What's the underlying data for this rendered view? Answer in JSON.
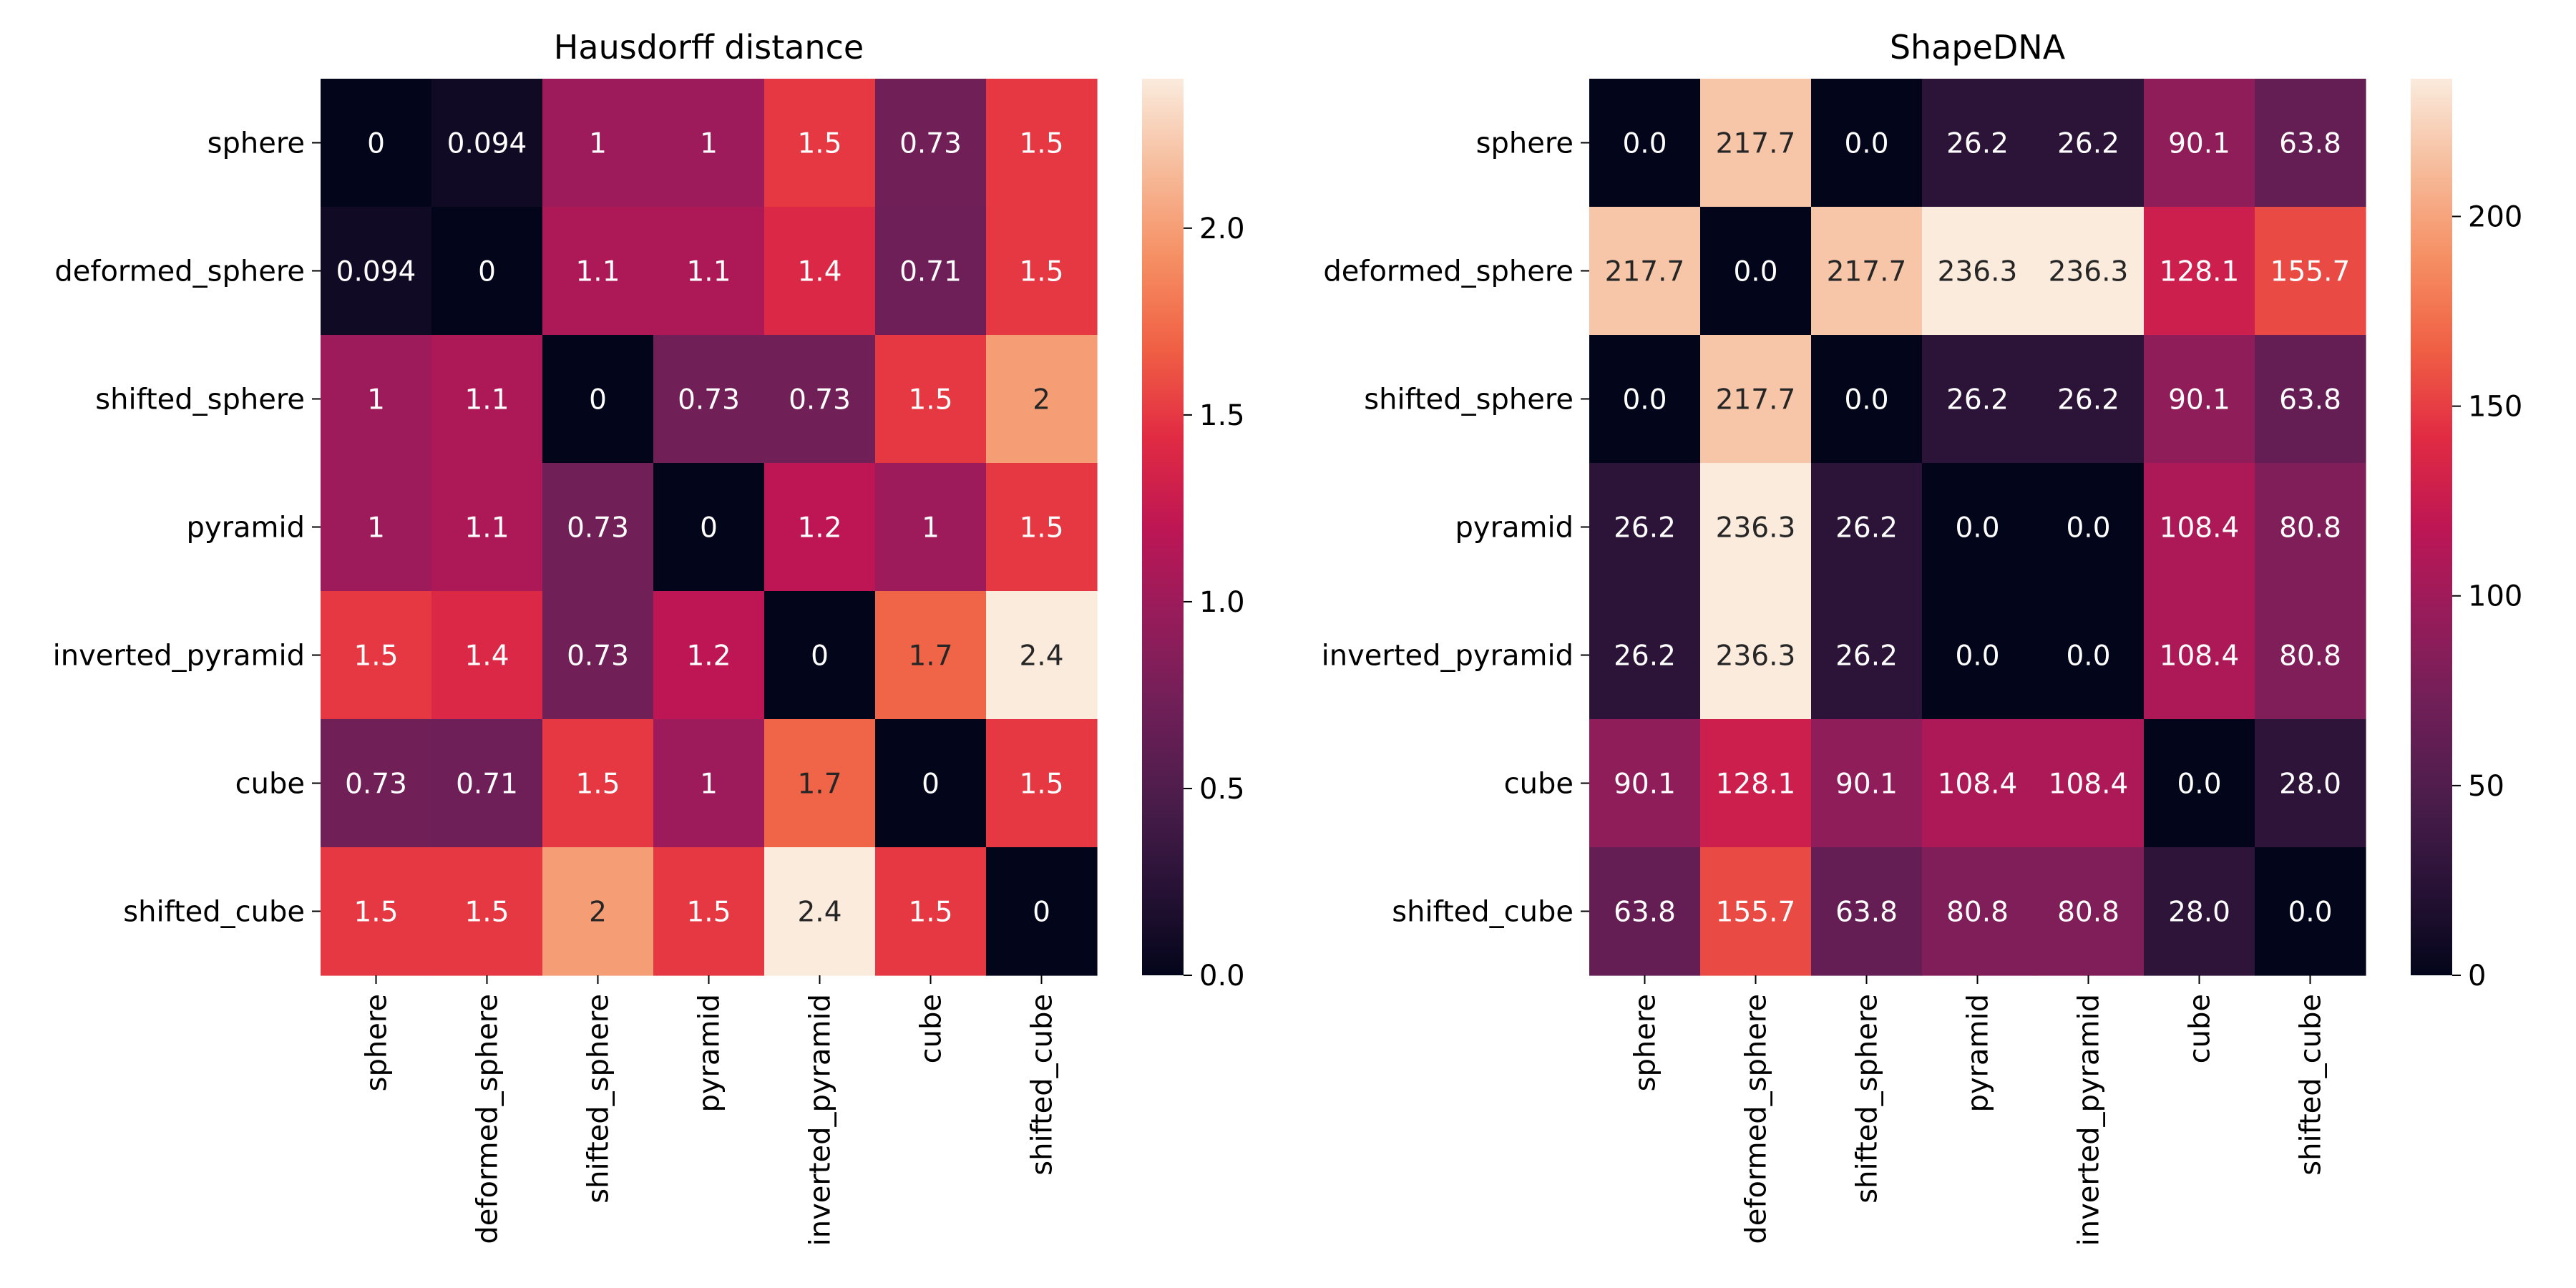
{
  "chart_data": [
    {
      "type": "heatmap",
      "title": "Hausdorff distance",
      "rows": [
        "sphere",
        "deformed_sphere",
        "shifted_sphere",
        "pyramid",
        "inverted_pyramid",
        "cube",
        "shifted_cube"
      ],
      "columns": [
        "sphere",
        "deformed_sphere",
        "shifted_sphere",
        "pyramid",
        "inverted_pyramid",
        "cube",
        "shifted_cube"
      ],
      "values": [
        [
          0,
          0.094,
          1,
          1,
          1.5,
          0.73,
          1.5
        ],
        [
          0.094,
          0,
          1.1,
          1.1,
          1.4,
          0.71,
          1.5
        ],
        [
          1,
          1.1,
          0,
          0.73,
          0.73,
          1.5,
          2
        ],
        [
          1,
          1.1,
          0.73,
          0,
          1.2,
          1,
          1.5
        ],
        [
          1.5,
          1.4,
          0.73,
          1.2,
          0,
          1.7,
          2.4
        ],
        [
          0.73,
          0.71,
          1.5,
          1,
          1.7,
          0,
          1.5
        ],
        [
          1.5,
          1.5,
          2,
          1.5,
          2.4,
          1.5,
          0
        ]
      ],
      "cell_labels": [
        [
          "0",
          "0.094",
          "1",
          "1",
          "1.5",
          "0.73",
          "1.5"
        ],
        [
          "0.094",
          "0",
          "1.1",
          "1.1",
          "1.4",
          "0.71",
          "1.5"
        ],
        [
          "1",
          "1.1",
          "0",
          "0.73",
          "0.73",
          "1.5",
          "2"
        ],
        [
          "1",
          "1.1",
          "0.73",
          "0",
          "1.2",
          "1",
          "1.5"
        ],
        [
          "1.5",
          "1.4",
          "0.73",
          "1.2",
          "0",
          "1.7",
          "2.4"
        ],
        [
          "0.73",
          "0.71",
          "1.5",
          "1",
          "1.7",
          "0",
          "1.5"
        ],
        [
          "1.5",
          "1.5",
          "2",
          "1.5",
          "2.4",
          "1.5",
          "0"
        ]
      ],
      "colorbar": {
        "range": [
          0,
          2.4
        ],
        "ticks": [
          0,
          0.5,
          1,
          1.5,
          2
        ],
        "tick_labels": [
          "0.0",
          "0.5",
          "1.0",
          "1.5",
          "2.0"
        ]
      },
      "colormap": "rocket"
    },
    {
      "type": "heatmap",
      "title": "ShapeDNA",
      "rows": [
        "sphere",
        "deformed_sphere",
        "shifted_sphere",
        "pyramid",
        "inverted_pyramid",
        "cube",
        "shifted_cube"
      ],
      "columns": [
        "sphere",
        "deformed_sphere",
        "shifted_sphere",
        "pyramid",
        "inverted_pyramid",
        "cube",
        "shifted_cube"
      ],
      "values": [
        [
          0.0,
          217.7,
          0.0,
          26.2,
          26.2,
          90.1,
          63.8
        ],
        [
          217.7,
          0.0,
          217.7,
          236.3,
          236.3,
          128.1,
          155.7
        ],
        [
          0.0,
          217.7,
          0.0,
          26.2,
          26.2,
          90.1,
          63.8
        ],
        [
          26.2,
          236.3,
          26.2,
          0.0,
          0.0,
          108.4,
          80.8
        ],
        [
          26.2,
          236.3,
          26.2,
          0.0,
          0.0,
          108.4,
          80.8
        ],
        [
          90.1,
          128.1,
          90.1,
          108.4,
          108.4,
          0.0,
          28.0
        ],
        [
          63.8,
          155.7,
          63.8,
          80.8,
          80.8,
          28.0,
          0.0
        ]
      ],
      "cell_labels": [
        [
          "0.0",
          "217.7",
          "0.0",
          "26.2",
          "26.2",
          "90.1",
          "63.8"
        ],
        [
          "217.7",
          "0.0",
          "217.7",
          "236.3",
          "236.3",
          "128.1",
          "155.7"
        ],
        [
          "0.0",
          "217.7",
          "0.0",
          "26.2",
          "26.2",
          "90.1",
          "63.8"
        ],
        [
          "26.2",
          "236.3",
          "26.2",
          "0.0",
          "0.0",
          "108.4",
          "80.8"
        ],
        [
          "26.2",
          "236.3",
          "26.2",
          "0.0",
          "0.0",
          "108.4",
          "80.8"
        ],
        [
          "90.1",
          "128.1",
          "90.1",
          "108.4",
          "108.4",
          "0.0",
          "28.0"
        ],
        [
          "63.8",
          "155.7",
          "63.8",
          "80.8",
          "80.8",
          "28.0",
          "0.0"
        ]
      ],
      "colorbar": {
        "range": [
          0,
          236.3
        ],
        "ticks": [
          0,
          50,
          100,
          150,
          200
        ],
        "tick_labels": [
          "0",
          "50",
          "100",
          "150",
          "200"
        ]
      },
      "colormap": "rocket"
    }
  ]
}
